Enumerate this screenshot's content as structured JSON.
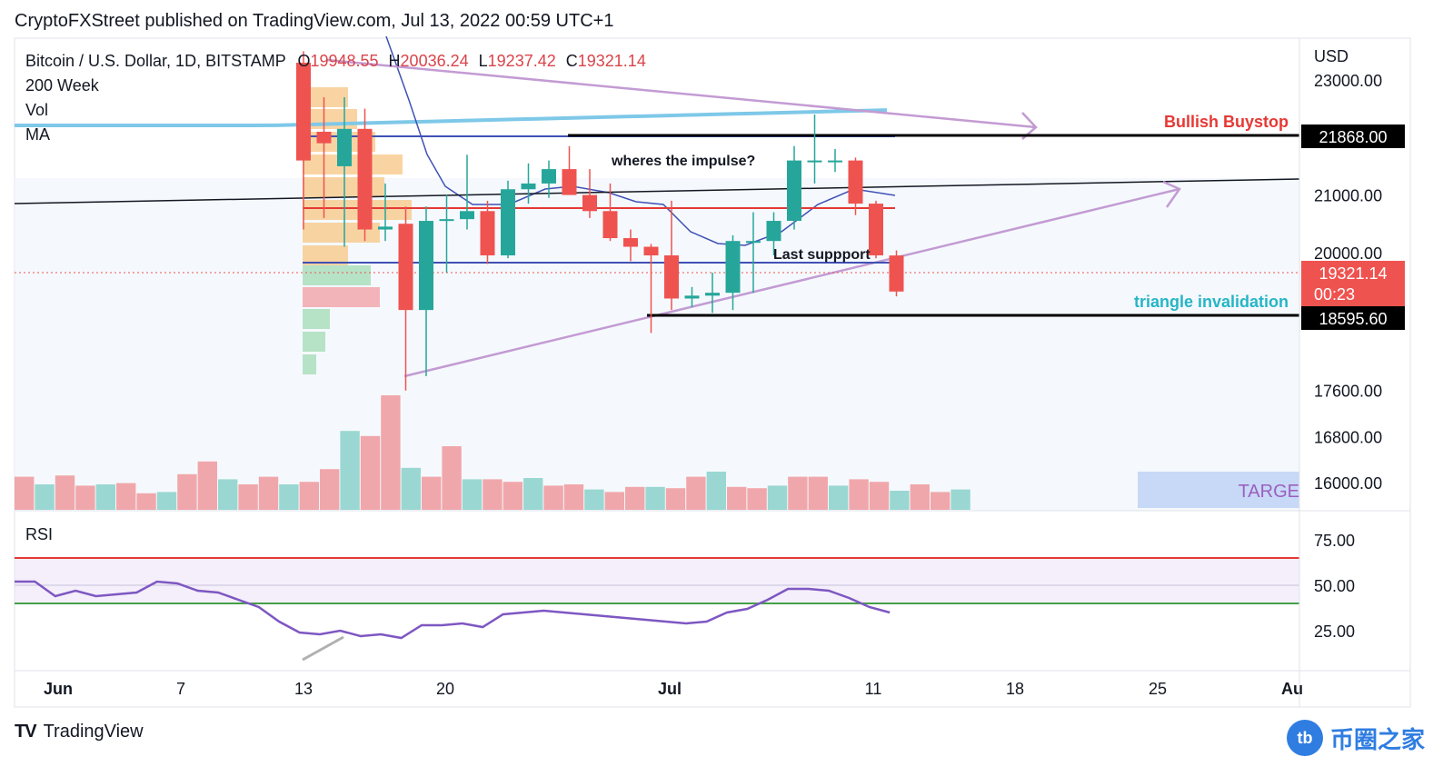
{
  "header": {
    "text": "CryptoFXStreet published on TradingView.com, Jul 13, 2022 00:59 UTC+1"
  },
  "legend": {
    "symbol": "Bitcoin / U.S. Dollar, 1D, BITSTAMP",
    "open_label": "O",
    "open": "19948.55",
    "high_label": "H",
    "high": "20036.24",
    "low_label": "L",
    "low": "19237.42",
    "close_label": "C",
    "close": "19321.14",
    "indicators": [
      "200 Week",
      "Vol",
      "MA"
    ]
  },
  "currency": "USD",
  "rsi_label": "RSI",
  "footer": {
    "brand": "TradingView",
    "watermark": "币圈之家",
    "watermark_badge": "tb"
  },
  "colors": {
    "up": "#26a69a",
    "down": "#ef5350",
    "ma200w": "#7ec8e8",
    "ma": "#3f51b5",
    "rsi": "#7e57c2",
    "trend": "#c39bd3"
  },
  "chart_data": {
    "type": "candlestick",
    "price_axis": {
      "ticks": [
        23000,
        22000,
        21000,
        20000,
        19200,
        18400,
        17600,
        16800,
        16000
      ],
      "tick_labels": [
        "23000.00",
        "",
        "21000.00",
        "20000.00",
        "",
        "",
        "17600.00",
        "16800.00",
        "16000.00"
      ]
    },
    "time_axis": {
      "labels": [
        "Jun",
        "7",
        "13",
        "20",
        "Jul",
        "11",
        "18",
        "25",
        "Au"
      ]
    },
    "candles": [
      {
        "d": "Jun 13",
        "o": 23300,
        "h": 23500,
        "l": 20400,
        "c": 21600
      },
      {
        "d": "Jun 14",
        "o": 22100,
        "h": 22700,
        "l": 20600,
        "c": 21900
      },
      {
        "d": "Jun 15",
        "o": 21500,
        "h": 22700,
        "l": 20100,
        "c": 22150
      },
      {
        "d": "Jun 16",
        "o": 22150,
        "h": 22500,
        "l": 20200,
        "c": 20400
      },
      {
        "d": "Jun 17",
        "o": 20400,
        "h": 21200,
        "l": 20200,
        "c": 20450
      },
      {
        "d": "Jun 18",
        "o": 20500,
        "h": 20800,
        "l": 17600,
        "c": 19000
      },
      {
        "d": "Jun 19",
        "o": 19000,
        "h": 20800,
        "l": 17850,
        "c": 20550
      },
      {
        "d": "Jun 20",
        "o": 20550,
        "h": 21000,
        "l": 19650,
        "c": 20580
      },
      {
        "d": "Jun 21",
        "o": 20580,
        "h": 21700,
        "l": 20400,
        "c": 20720
      },
      {
        "d": "Jun 22",
        "o": 20720,
        "h": 20900,
        "l": 19800,
        "c": 19950
      },
      {
        "d": "Jun 23",
        "o": 19950,
        "h": 21250,
        "l": 19900,
        "c": 21100
      },
      {
        "d": "Jun 24",
        "o": 21100,
        "h": 21550,
        "l": 20850,
        "c": 21200
      },
      {
        "d": "Jun 25",
        "o": 21200,
        "h": 21600,
        "l": 20950,
        "c": 21450
      },
      {
        "d": "Jun 26",
        "o": 21450,
        "h": 21850,
        "l": 21000,
        "c": 21000
      },
      {
        "d": "Jun 27",
        "o": 21000,
        "h": 21450,
        "l": 20600,
        "c": 20720
      },
      {
        "d": "Jun 28",
        "o": 20720,
        "h": 21200,
        "l": 20200,
        "c": 20250
      },
      {
        "d": "Jun 29",
        "o": 20250,
        "h": 20400,
        "l": 19850,
        "c": 20100
      },
      {
        "d": "Jun 30",
        "o": 20100,
        "h": 20150,
        "l": 18600,
        "c": 19950
      },
      {
        "d": "Jul 1",
        "o": 19950,
        "h": 20900,
        "l": 19000,
        "c": 19200
      },
      {
        "d": "Jul 2",
        "o": 19200,
        "h": 19400,
        "l": 19050,
        "c": 19250
      },
      {
        "d": "Jul 3",
        "o": 19250,
        "h": 19650,
        "l": 18950,
        "c": 19300
      },
      {
        "d": "Jul 4",
        "o": 19300,
        "h": 20300,
        "l": 19000,
        "c": 20200
      },
      {
        "d": "Jul 5",
        "o": 20200,
        "h": 20700,
        "l": 19300,
        "c": 20200
      },
      {
        "d": "Jul 6",
        "o": 20200,
        "h": 20700,
        "l": 19950,
        "c": 20550
      },
      {
        "d": "Jul 7",
        "o": 20550,
        "h": 21850,
        "l": 20400,
        "c": 21600
      },
      {
        "d": "Jul 8",
        "o": 21600,
        "h": 22400,
        "l": 21200,
        "c": 21600
      },
      {
        "d": "Jul 9",
        "o": 21600,
        "h": 21800,
        "l": 21400,
        "c": 21600
      },
      {
        "d": "Jul 10",
        "o": 21600,
        "h": 21650,
        "l": 20650,
        "c": 20850
      },
      {
        "d": "Jul 11",
        "o": 20850,
        "h": 20900,
        "l": 19900,
        "c": 19950
      },
      {
        "d": "Jul 12",
        "o": 19948.55,
        "h": 20036.24,
        "l": 19237.42,
        "c": 19321.14
      }
    ],
    "volume_bars": [
      26,
      20,
      27,
      19,
      20,
      21,
      13,
      14,
      28,
      38,
      24,
      20,
      26,
      20,
      22,
      32,
      62,
      58,
      90,
      33,
      26,
      50,
      24,
      24,
      22,
      25,
      19,
      20,
      16,
      14,
      18,
      18,
      17,
      26,
      30,
      18,
      17,
      19,
      26,
      26,
      19,
      24,
      22,
      15,
      20,
      14,
      16
    ],
    "rsi": {
      "levels": [
        75,
        50,
        25
      ],
      "tick_labels": [
        "75.00",
        "50.00",
        "25.00"
      ],
      "overbought_line": 65,
      "oversold_line": 40,
      "values": [
        52,
        52,
        44,
        47,
        44,
        45,
        46,
        52,
        51,
        47,
        46,
        42,
        38,
        30,
        24,
        23,
        25,
        22,
        23,
        21,
        28,
        28,
        29,
        27,
        34,
        35,
        36,
        35,
        34,
        33,
        32,
        31,
        30,
        29,
        30,
        35,
        37,
        42,
        48,
        48,
        47,
        43,
        38,
        35
      ]
    },
    "annotations": {
      "bullish_buystop_label": "Bullish Buystop",
      "bullish_buystop_price": "21868.00",
      "triangle_invalidation_label": "triangle invalidation",
      "triangle_invalidation_price": "18595.60",
      "last_price": "19321.14",
      "countdown": "00:23",
      "impulse_note": "wheres the impulse?",
      "support_note": "Last suppport",
      "target_label": "TARGE"
    }
  }
}
